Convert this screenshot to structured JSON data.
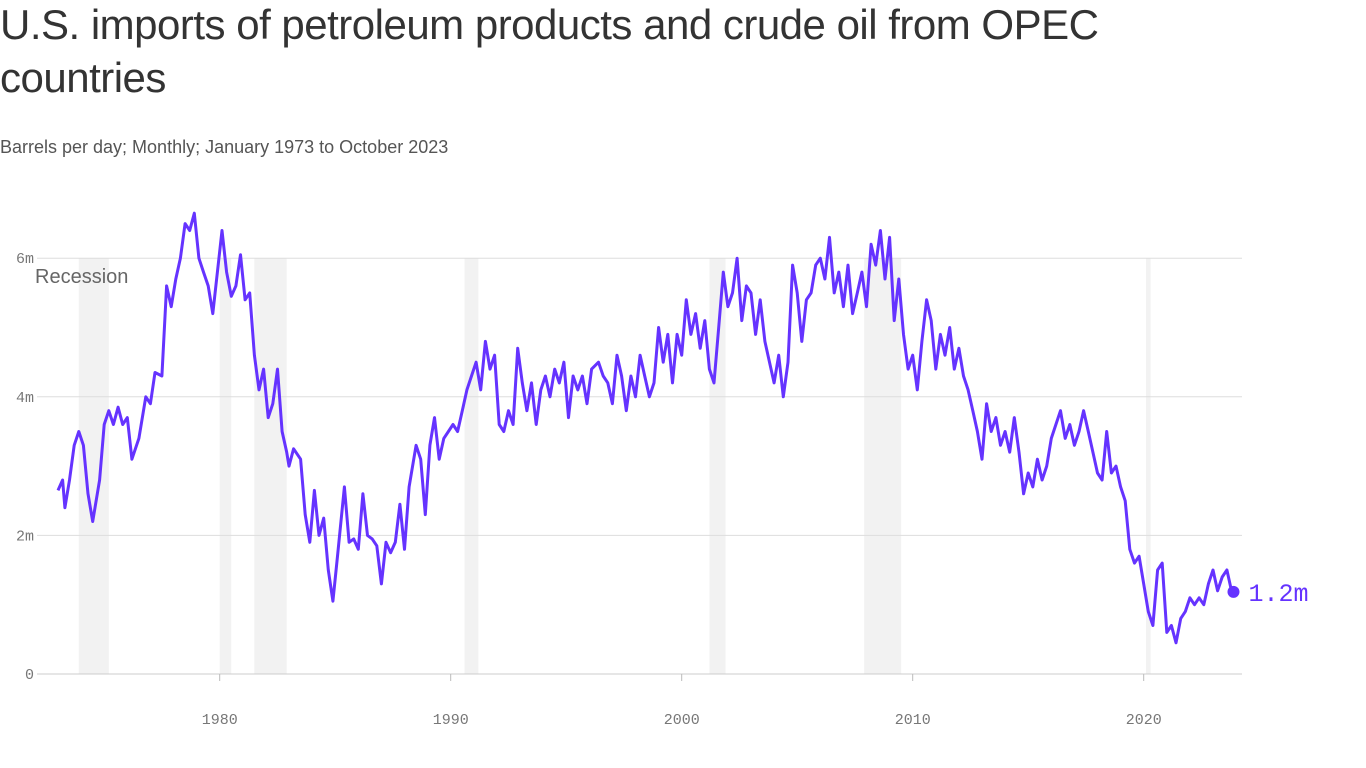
{
  "title": "U.S. imports of petroleum products and crude oil from OPEC countries",
  "subtitle": "Barrels per day; Monthly; January 1973 to October 2023",
  "chart_data": {
    "type": "line",
    "title": "U.S. imports of petroleum products and crude oil from OPEC countries",
    "subtitle": "Barrels per day; Monthly; January 1973 to October 2023",
    "xlim": [
      1973,
      2024
    ],
    "ylim": [
      0,
      6.7
    ],
    "x_ticks": [
      {
        "v": 1980,
        "label": "1980"
      },
      {
        "v": 1990,
        "label": "1990"
      },
      {
        "v": 2000,
        "label": "2000"
      },
      {
        "v": 2010,
        "label": "2010"
      },
      {
        "v": 2020,
        "label": "2020"
      }
    ],
    "y_ticks": [
      {
        "v": 0,
        "label": "0"
      },
      {
        "v": 2,
        "label": "2m"
      },
      {
        "v": 4,
        "label": "4m"
      },
      {
        "v": 6,
        "label": "6m"
      }
    ],
    "grid": "horizontal",
    "line_color": "#6533ff",
    "recession_color": "#f2f2f2",
    "recession_label": "Recession",
    "recessions": [
      [
        1973.9,
        1975.2
      ],
      [
        1980.0,
        1980.5
      ],
      [
        1981.5,
        1982.9
      ],
      [
        1990.6,
        1991.2
      ],
      [
        2001.2,
        2001.9
      ],
      [
        2007.9,
        2009.5
      ],
      [
        2020.1,
        2020.3
      ]
    ],
    "end_label": "1.2m",
    "series": [
      {
        "values": [
          [
            1973.0,
            2.65
          ],
          [
            1973.2,
            2.8
          ],
          [
            1973.3,
            2.4
          ],
          [
            1973.5,
            2.8
          ],
          [
            1973.7,
            3.3
          ],
          [
            1973.9,
            3.5
          ],
          [
            1974.1,
            3.3
          ],
          [
            1974.3,
            2.6
          ],
          [
            1974.5,
            2.2
          ],
          [
            1974.8,
            2.8
          ],
          [
            1975.0,
            3.6
          ],
          [
            1975.2,
            3.8
          ],
          [
            1975.4,
            3.6
          ],
          [
            1975.6,
            3.85
          ],
          [
            1975.8,
            3.6
          ],
          [
            1976.0,
            3.7
          ],
          [
            1976.2,
            3.1
          ],
          [
            1976.5,
            3.4
          ],
          [
            1976.8,
            4.0
          ],
          [
            1977.0,
            3.9
          ],
          [
            1977.2,
            4.35
          ],
          [
            1977.5,
            4.3
          ],
          [
            1977.7,
            5.6
          ],
          [
            1977.9,
            5.3
          ],
          [
            1978.1,
            5.7
          ],
          [
            1978.3,
            6.0
          ],
          [
            1978.5,
            6.5
          ],
          [
            1978.7,
            6.4
          ],
          [
            1978.9,
            6.65
          ],
          [
            1979.1,
            6.0
          ],
          [
            1979.3,
            5.8
          ],
          [
            1979.5,
            5.6
          ],
          [
            1979.7,
            5.2
          ],
          [
            1979.9,
            5.8
          ],
          [
            1980.1,
            6.4
          ],
          [
            1980.3,
            5.8
          ],
          [
            1980.5,
            5.45
          ],
          [
            1980.7,
            5.6
          ],
          [
            1980.9,
            6.05
          ],
          [
            1981.1,
            5.4
          ],
          [
            1981.3,
            5.5
          ],
          [
            1981.5,
            4.6
          ],
          [
            1981.7,
            4.1
          ],
          [
            1981.9,
            4.4
          ],
          [
            1982.1,
            3.7
          ],
          [
            1982.3,
            3.9
          ],
          [
            1982.5,
            4.4
          ],
          [
            1982.7,
            3.5
          ],
          [
            1982.9,
            3.2
          ],
          [
            1983.0,
            3.0
          ],
          [
            1983.2,
            3.25
          ],
          [
            1983.5,
            3.1
          ],
          [
            1983.7,
            2.3
          ],
          [
            1983.9,
            1.9
          ],
          [
            1984.1,
            2.65
          ],
          [
            1984.3,
            2.0
          ],
          [
            1984.5,
            2.25
          ],
          [
            1984.7,
            1.5
          ],
          [
            1984.9,
            1.05
          ],
          [
            1985.1,
            1.7
          ],
          [
            1985.4,
            2.7
          ],
          [
            1985.6,
            1.9
          ],
          [
            1985.8,
            1.95
          ],
          [
            1986.0,
            1.8
          ],
          [
            1986.2,
            2.6
          ],
          [
            1986.4,
            2.0
          ],
          [
            1986.6,
            1.95
          ],
          [
            1986.8,
            1.85
          ],
          [
            1987.0,
            1.3
          ],
          [
            1987.2,
            1.9
          ],
          [
            1987.4,
            1.75
          ],
          [
            1987.6,
            1.9
          ],
          [
            1987.8,
            2.45
          ],
          [
            1988.0,
            1.8
          ],
          [
            1988.2,
            2.7
          ],
          [
            1988.5,
            3.3
          ],
          [
            1988.7,
            3.1
          ],
          [
            1988.9,
            2.3
          ],
          [
            1989.1,
            3.3
          ],
          [
            1989.3,
            3.7
          ],
          [
            1989.5,
            3.1
          ],
          [
            1989.7,
            3.4
          ],
          [
            1989.9,
            3.5
          ],
          [
            1990.1,
            3.6
          ],
          [
            1990.3,
            3.5
          ],
          [
            1990.5,
            3.8
          ],
          [
            1990.7,
            4.1
          ],
          [
            1990.9,
            4.3
          ],
          [
            1991.1,
            4.5
          ],
          [
            1991.3,
            4.1
          ],
          [
            1991.5,
            4.8
          ],
          [
            1991.7,
            4.4
          ],
          [
            1991.9,
            4.6
          ],
          [
            1992.1,
            3.6
          ],
          [
            1992.3,
            3.5
          ],
          [
            1992.5,
            3.8
          ],
          [
            1992.7,
            3.6
          ],
          [
            1992.9,
            4.7
          ],
          [
            1993.1,
            4.2
          ],
          [
            1993.3,
            3.8
          ],
          [
            1993.5,
            4.2
          ],
          [
            1993.7,
            3.6
          ],
          [
            1993.9,
            4.1
          ],
          [
            1994.1,
            4.3
          ],
          [
            1994.3,
            4.0
          ],
          [
            1994.5,
            4.4
          ],
          [
            1994.7,
            4.2
          ],
          [
            1994.9,
            4.5
          ],
          [
            1995.1,
            3.7
          ],
          [
            1995.3,
            4.3
          ],
          [
            1995.5,
            4.1
          ],
          [
            1995.7,
            4.3
          ],
          [
            1995.9,
            3.9
          ],
          [
            1996.1,
            4.4
          ],
          [
            1996.4,
            4.5
          ],
          [
            1996.6,
            4.3
          ],
          [
            1996.8,
            4.2
          ],
          [
            1997.0,
            3.9
          ],
          [
            1997.2,
            4.6
          ],
          [
            1997.4,
            4.3
          ],
          [
            1997.6,
            3.8
          ],
          [
            1997.8,
            4.3
          ],
          [
            1998.0,
            4.0
          ],
          [
            1998.2,
            4.6
          ],
          [
            1998.4,
            4.3
          ],
          [
            1998.6,
            4.0
          ],
          [
            1998.8,
            4.2
          ],
          [
            1999.0,
            5.0
          ],
          [
            1999.2,
            4.5
          ],
          [
            1999.4,
            4.9
          ],
          [
            1999.6,
            4.2
          ],
          [
            1999.8,
            4.9
          ],
          [
            2000.0,
            4.6
          ],
          [
            2000.2,
            5.4
          ],
          [
            2000.4,
            4.9
          ],
          [
            2000.6,
            5.2
          ],
          [
            2000.8,
            4.7
          ],
          [
            2001.0,
            5.1
          ],
          [
            2001.2,
            4.4
          ],
          [
            2001.4,
            4.2
          ],
          [
            2001.6,
            5.0
          ],
          [
            2001.8,
            5.8
          ],
          [
            2002.0,
            5.3
          ],
          [
            2002.2,
            5.5
          ],
          [
            2002.4,
            6.0
          ],
          [
            2002.6,
            5.1
          ],
          [
            2002.8,
            5.6
          ],
          [
            2003.0,
            5.5
          ],
          [
            2003.2,
            4.9
          ],
          [
            2003.4,
            5.4
          ],
          [
            2003.6,
            4.8
          ],
          [
            2003.8,
            4.5
          ],
          [
            2004.0,
            4.2
          ],
          [
            2004.2,
            4.6
          ],
          [
            2004.4,
            4.0
          ],
          [
            2004.6,
            4.5
          ],
          [
            2004.8,
            5.9
          ],
          [
            2005.0,
            5.5
          ],
          [
            2005.2,
            4.8
          ],
          [
            2005.4,
            5.4
          ],
          [
            2005.6,
            5.5
          ],
          [
            2005.8,
            5.9
          ],
          [
            2006.0,
            6.0
          ],
          [
            2006.2,
            5.7
          ],
          [
            2006.4,
            6.3
          ],
          [
            2006.6,
            5.5
          ],
          [
            2006.8,
            5.8
          ],
          [
            2007.0,
            5.3
          ],
          [
            2007.2,
            5.9
          ],
          [
            2007.4,
            5.2
          ],
          [
            2007.6,
            5.5
          ],
          [
            2007.8,
            5.8
          ],
          [
            2008.0,
            5.3
          ],
          [
            2008.2,
            6.2
          ],
          [
            2008.4,
            5.9
          ],
          [
            2008.6,
            6.4
          ],
          [
            2008.8,
            5.7
          ],
          [
            2009.0,
            6.3
          ],
          [
            2009.2,
            5.1
          ],
          [
            2009.4,
            5.7
          ],
          [
            2009.6,
            4.9
          ],
          [
            2009.8,
            4.4
          ],
          [
            2010.0,
            4.6
          ],
          [
            2010.2,
            4.1
          ],
          [
            2010.4,
            4.8
          ],
          [
            2010.6,
            5.4
          ],
          [
            2010.8,
            5.1
          ],
          [
            2011.0,
            4.4
          ],
          [
            2011.2,
            4.9
          ],
          [
            2011.4,
            4.6
          ],
          [
            2011.6,
            5.0
          ],
          [
            2011.8,
            4.4
          ],
          [
            2012.0,
            4.7
          ],
          [
            2012.2,
            4.3
          ],
          [
            2012.4,
            4.1
          ],
          [
            2012.6,
            3.8
          ],
          [
            2012.8,
            3.5
          ],
          [
            2013.0,
            3.1
          ],
          [
            2013.2,
            3.9
          ],
          [
            2013.4,
            3.5
          ],
          [
            2013.6,
            3.7
          ],
          [
            2013.8,
            3.3
          ],
          [
            2014.0,
            3.5
          ],
          [
            2014.2,
            3.2
          ],
          [
            2014.4,
            3.7
          ],
          [
            2014.6,
            3.2
          ],
          [
            2014.8,
            2.6
          ],
          [
            2015.0,
            2.9
          ],
          [
            2015.2,
            2.7
          ],
          [
            2015.4,
            3.1
          ],
          [
            2015.6,
            2.8
          ],
          [
            2015.8,
            3.0
          ],
          [
            2016.0,
            3.4
          ],
          [
            2016.2,
            3.6
          ],
          [
            2016.4,
            3.8
          ],
          [
            2016.6,
            3.4
          ],
          [
            2016.8,
            3.6
          ],
          [
            2017.0,
            3.3
          ],
          [
            2017.2,
            3.5
          ],
          [
            2017.4,
            3.8
          ],
          [
            2017.6,
            3.5
          ],
          [
            2017.8,
            3.2
          ],
          [
            2018.0,
            2.9
          ],
          [
            2018.2,
            2.8
          ],
          [
            2018.4,
            3.5
          ],
          [
            2018.6,
            2.9
          ],
          [
            2018.8,
            3.0
          ],
          [
            2019.0,
            2.7
          ],
          [
            2019.2,
            2.5
          ],
          [
            2019.4,
            1.8
          ],
          [
            2019.6,
            1.6
          ],
          [
            2019.8,
            1.7
          ],
          [
            2020.0,
            1.3
          ],
          [
            2020.2,
            0.9
          ],
          [
            2020.4,
            0.7
          ],
          [
            2020.6,
            1.5
          ],
          [
            2020.8,
            1.6
          ],
          [
            2021.0,
            0.6
          ],
          [
            2021.2,
            0.7
          ],
          [
            2021.4,
            0.45
          ],
          [
            2021.6,
            0.8
          ],
          [
            2021.8,
            0.9
          ],
          [
            2022.0,
            1.1
          ],
          [
            2022.2,
            1.0
          ],
          [
            2022.4,
            1.1
          ],
          [
            2022.6,
            1.0
          ],
          [
            2022.8,
            1.3
          ],
          [
            2023.0,
            1.5
          ],
          [
            2023.2,
            1.2
          ],
          [
            2023.4,
            1.4
          ],
          [
            2023.6,
            1.5
          ],
          [
            2023.8,
            1.2
          ]
        ]
      }
    ]
  }
}
